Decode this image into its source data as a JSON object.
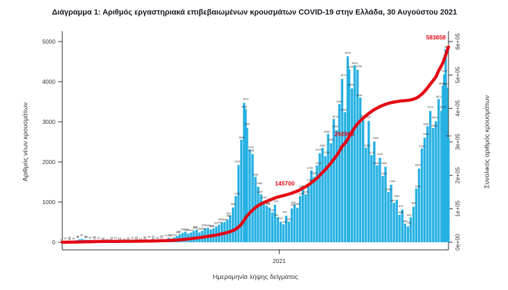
{
  "title": "Διάγραμμα 1: Αριθμός εργαστηριακά επιβεβαιωμένων κρουσμάτων COVID-19 στην Ελλάδα, 30 Αυγούστου 2021",
  "colors": {
    "bar": "#27b1e3",
    "cumulative_line": "#e30613",
    "annotation": "#e30613",
    "axis": "#2a2a2a",
    "tick_text": "#333333",
    "bar_label_text": "#2b2b2b",
    "title_text": "#16161f",
    "background": "#ffffff"
  },
  "chart_data": {
    "type": "bar",
    "subtype": "daily bars with cumulative line overlay",
    "title": "Διάγραμμα 1: Αριθμός εργαστηριακά επιβεβαιωμένων κρουσμάτων COVID-19 στην Ελλάδα, 30 Αυγούστου 2021",
    "x_axis": {
      "label": "Ημερομηνία λήψης δείγματος",
      "tick_labels": [
        "2021"
      ],
      "tick_days": [
        310
      ],
      "range_days": [
        0,
        552
      ]
    },
    "y_left": {
      "label": "Αριθμός νέων κρουσμάτων",
      "ticks": [
        0,
        1000,
        2000,
        3000,
        4000,
        5000
      ],
      "tick_labels": [
        "0",
        "1000",
        "2000",
        "3000",
        "4000",
        "5000"
      ],
      "range": [
        0,
        5000
      ],
      "series_name": "daily new confirmed cases (bars)"
    },
    "y_right": {
      "label": "Συνολικός αριθμός κρουσμάτων",
      "ticks": [
        0,
        100000,
        200000,
        300000,
        400000,
        500000,
        600000
      ],
      "tick_labels": [
        "0e+00",
        "1e+05",
        "2e+05",
        "3e+05",
        "4e+05",
        "5e+05",
        "6e+05"
      ],
      "range": [
        0,
        600000
      ],
      "series_name": "cumulative confirmed cases (line)"
    },
    "annotations": [
      {
        "text": "145700",
        "d": 318,
        "v": 170000
      },
      {
        "text": "292963",
        "d": 403,
        "v": 318000
      },
      {
        "text": "583658",
        "d": 534,
        "v": 606000
      }
    ],
    "grid": false,
    "legend": "none",
    "points_format": [
      "day_index",
      "new_cases",
      "cumulative_cases"
    ],
    "points": [
      [
        0,
        3,
        10
      ],
      [
        4,
        10,
        60
      ],
      [
        8,
        16,
        120
      ],
      [
        12,
        24,
        230
      ],
      [
        16,
        33,
        380
      ],
      [
        20,
        48,
        560
      ],
      [
        24,
        71,
        780
      ],
      [
        28,
        82,
        1060
      ],
      [
        32,
        65,
        1310
      ],
      [
        36,
        56,
        1520
      ],
      [
        40,
        60,
        1755
      ],
      [
        44,
        45,
        1955
      ],
      [
        48,
        32,
        2115
      ],
      [
        52,
        21,
        2235
      ],
      [
        56,
        16,
        2330
      ],
      [
        60,
        12,
        2400
      ],
      [
        64,
        10,
        2460
      ],
      [
        68,
        18,
        2530
      ],
      [
        72,
        11,
        2590
      ],
      [
        76,
        15,
        2650
      ],
      [
        80,
        10,
        2705
      ],
      [
        84,
        12,
        2760
      ],
      [
        88,
        19,
        2820
      ],
      [
        92,
        14,
        2880
      ],
      [
        96,
        10,
        2935
      ],
      [
        100,
        13,
        2990
      ],
      [
        104,
        22,
        3060
      ],
      [
        108,
        31,
        3150
      ],
      [
        112,
        27,
        3255
      ],
      [
        116,
        36,
        3380
      ],
      [
        120,
        29,
        3490
      ],
      [
        124,
        43,
        3620
      ],
      [
        128,
        36,
        3760
      ],
      [
        132,
        52,
        3910
      ],
      [
        136,
        48,
        4080
      ],
      [
        140,
        63,
        4280
      ],
      [
        144,
        57,
        4500
      ],
      [
        148,
        79,
        4760
      ],
      [
        152,
        110,
        5120
      ],
      [
        156,
        92,
        5480
      ],
      [
        160,
        124,
        5910
      ],
      [
        164,
        157,
        6450
      ],
      [
        168,
        204,
        7150
      ],
      [
        172,
        235,
        7980
      ],
      [
        176,
        262,
        8900
      ],
      [
        180,
        217,
        9780
      ],
      [
        184,
        243,
        10700
      ],
      [
        188,
        284,
        11750
      ],
      [
        192,
        312,
        12900
      ],
      [
        196,
        245,
        13880
      ],
      [
        200,
        286,
        14980
      ],
      [
        204,
        339,
        16250
      ],
      [
        208,
        358,
        17600
      ],
      [
        212,
        316,
        18850
      ],
      [
        216,
        346,
        20150
      ],
      [
        220,
        391,
        21600
      ],
      [
        224,
        436,
        23250
      ],
      [
        228,
        482,
        25100
      ],
      [
        232,
        508,
        27050
      ],
      [
        236,
        566,
        29250
      ],
      [
        240,
        667,
        31800
      ],
      [
        244,
        865,
        35000
      ],
      [
        248,
        1152,
        39100
      ],
      [
        252,
        1924,
        45300
      ],
      [
        256,
        2556,
        54000
      ],
      [
        260,
        3473,
        66000
      ],
      [
        262,
        3316,
        72600
      ],
      [
        264,
        2854,
        78600
      ],
      [
        268,
        2311,
        87700
      ],
      [
        272,
        2198,
        96200
      ],
      [
        276,
        1630,
        103600
      ],
      [
        280,
        1383,
        109500
      ],
      [
        284,
        1194,
        114300
      ],
      [
        288,
        1030,
        118600
      ],
      [
        292,
        912,
        122300
      ],
      [
        296,
        868,
        125800
      ],
      [
        300,
        743,
        128900
      ],
      [
        304,
        931,
        132400
      ],
      [
        308,
        624,
        135200
      ],
      [
        312,
        512,
        137400
      ],
      [
        316,
        446,
        139300
      ],
      [
        320,
        662,
        141700
      ],
      [
        324,
        516,
        143900
      ],
      [
        328,
        841,
        146700
      ],
      [
        332,
        935,
        149900
      ],
      [
        336,
        858,
        153000
      ],
      [
        340,
        1151,
        157300
      ],
      [
        344,
        1305,
        162000
      ],
      [
        348,
        1196,
        166400
      ],
      [
        352,
        1460,
        171800
      ],
      [
        356,
        1790,
        178400
      ],
      [
        360,
        1632,
        184500
      ],
      [
        364,
        1913,
        191600
      ],
      [
        368,
        2215,
        199900
      ],
      [
        372,
        2353,
        208800
      ],
      [
        376,
        2146,
        217000
      ],
      [
        380,
        2698,
        227000
      ],
      [
        384,
        2465,
        236600
      ],
      [
        388,
        3073,
        248000
      ],
      [
        392,
        2789,
        258800
      ],
      [
        396,
        3445,
        271800
      ],
      [
        400,
        4071,
        287000
      ],
      [
        404,
        3239,
        295500
      ],
      [
        408,
        4633,
        308000
      ],
      [
        410,
        4309,
        316000
      ],
      [
        414,
        3833,
        330000
      ],
      [
        418,
        4408,
        343000
      ],
      [
        422,
        4295,
        354000
      ],
      [
        426,
        3605,
        363000
      ],
      [
        430,
        3048,
        371000
      ],
      [
        434,
        2353,
        378000
      ],
      [
        438,
        3023,
        385000
      ],
      [
        442,
        2170,
        391000
      ],
      [
        446,
        2509,
        396500
      ],
      [
        450,
        1918,
        401000
      ],
      [
        454,
        2105,
        405500
      ],
      [
        458,
        1651,
        409000
      ],
      [
        462,
        1881,
        412500
      ],
      [
        466,
        1256,
        415000
      ],
      [
        470,
        1432,
        417300
      ],
      [
        474,
        984,
        419000
      ],
      [
        478,
        1060,
        420500
      ],
      [
        482,
        686,
        421600
      ],
      [
        486,
        813,
        422600
      ],
      [
        490,
        466,
        423300
      ],
      [
        494,
        394,
        424100
      ],
      [
        498,
        622,
        425600
      ],
      [
        502,
        884,
        427600
      ],
      [
        506,
        1340,
        431000
      ],
      [
        510,
        1834,
        436000
      ],
      [
        514,
        2334,
        443000
      ],
      [
        518,
        2605,
        451500
      ],
      [
        522,
        2891,
        461500
      ],
      [
        526,
        3273,
        472500
      ],
      [
        530,
        2846,
        483000
      ],
      [
        534,
        3013,
        494000
      ],
      [
        538,
        3571,
        513000
      ],
      [
        542,
        3273,
        528000
      ],
      [
        544,
        3900,
        536000
      ],
      [
        546,
        4181,
        548000
      ],
      [
        548,
        4808,
        560000
      ],
      [
        550,
        3853,
        572000
      ],
      [
        552,
        2599,
        583658
      ]
    ]
  }
}
